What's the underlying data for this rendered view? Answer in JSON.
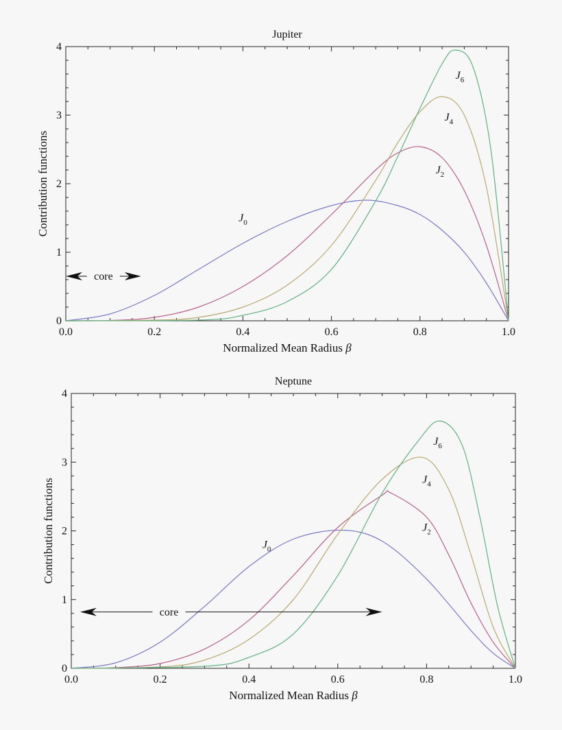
{
  "chart_data": [
    {
      "type": "line",
      "title": "Jupiter",
      "xlabel": "Normalized Mean Radius",
      "xlabel_symbol": "β",
      "ylabel": "Contribution functions",
      "xlim": [
        0,
        1
      ],
      "ylim": [
        0,
        4
      ],
      "x_ticks": [
        "0.0",
        "0.2",
        "0.4",
        "0.6",
        "0.8",
        "1.0"
      ],
      "y_ticks": [
        "0",
        "1",
        "2",
        "3",
        "4"
      ],
      "grid": false,
      "series": [
        {
          "name": "J",
          "sub": "0",
          "color": "#7878c4",
          "label_at": [
            0.4,
            1.45
          ],
          "x": [
            0.0,
            0.1,
            0.2,
            0.3,
            0.4,
            0.5,
            0.6,
            0.68,
            0.75,
            0.8,
            0.85,
            0.9,
            0.95,
            1.0
          ],
          "y": [
            0.0,
            0.1,
            0.37,
            0.75,
            1.13,
            1.45,
            1.68,
            1.76,
            1.68,
            1.55,
            1.32,
            1.0,
            0.55,
            0.0
          ]
        },
        {
          "name": "J",
          "sub": "2",
          "color": "#b8608a",
          "label_at": [
            0.845,
            2.15
          ],
          "x": [
            0.0,
            0.1,
            0.2,
            0.3,
            0.4,
            0.5,
            0.6,
            0.7,
            0.75,
            0.8,
            0.85,
            0.9,
            0.95,
            1.0
          ],
          "y": [
            0.0,
            0.005,
            0.05,
            0.2,
            0.5,
            0.95,
            1.55,
            2.2,
            2.45,
            2.54,
            2.38,
            1.9,
            1.1,
            0.0
          ]
        },
        {
          "name": "J",
          "sub": "4",
          "color": "#b8a870",
          "label_at": [
            0.865,
            2.92
          ],
          "x": [
            0.0,
            0.2,
            0.3,
            0.4,
            0.5,
            0.6,
            0.7,
            0.75,
            0.8,
            0.85,
            0.9,
            0.95,
            1.0
          ],
          "y": [
            0.0,
            0.01,
            0.05,
            0.2,
            0.52,
            1.1,
            2.05,
            2.6,
            3.05,
            3.27,
            3.0,
            1.95,
            0.0
          ]
        },
        {
          "name": "J",
          "sub": "6",
          "color": "#60b080",
          "label_at": [
            0.89,
            3.53
          ],
          "x": [
            0.0,
            0.3,
            0.4,
            0.5,
            0.6,
            0.7,
            0.75,
            0.8,
            0.85,
            0.88,
            0.92,
            0.96,
            1.0
          ],
          "y": [
            0.0,
            0.01,
            0.08,
            0.28,
            0.75,
            1.75,
            2.4,
            3.1,
            3.75,
            3.95,
            3.7,
            2.5,
            0.0
          ]
        }
      ],
      "annotation": {
        "text": "core",
        "from": 0.0,
        "to": 0.17,
        "y": 0.65,
        "text_x": 0.085
      }
    },
    {
      "type": "line",
      "title": "Neptune",
      "xlabel": "Normalized Mean Radius",
      "xlabel_symbol": "β",
      "ylabel": "Contribution functions",
      "xlim": [
        0,
        1
      ],
      "ylim": [
        0,
        4
      ],
      "x_ticks": [
        "0.0",
        "0.2",
        "0.4",
        "0.6",
        "0.8",
        "1.0"
      ],
      "y_ticks": [
        "0",
        "1",
        "2",
        "3",
        "4"
      ],
      "grid": false,
      "series": [
        {
          "name": "J",
          "sub": "0",
          "color": "#7878c4",
          "label_at": [
            0.44,
            1.75
          ],
          "x": [
            0.0,
            0.1,
            0.2,
            0.3,
            0.4,
            0.5,
            0.61,
            0.7,
            0.8,
            0.9,
            0.95,
            1.0
          ],
          "y": [
            0.0,
            0.08,
            0.38,
            0.9,
            1.48,
            1.88,
            2.01,
            1.85,
            1.3,
            0.55,
            0.22,
            0.0
          ]
        },
        {
          "name": "J",
          "sub": "2",
          "color": "#b8608a",
          "label_at": [
            0.8,
            2.0
          ],
          "x": [
            0.0,
            0.1,
            0.2,
            0.3,
            0.4,
            0.5,
            0.6,
            0.7,
            0.72,
            0.8,
            0.85,
            0.9,
            0.95,
            1.0
          ],
          "y": [
            0.0,
            0.01,
            0.07,
            0.28,
            0.7,
            1.35,
            2.05,
            2.52,
            2.55,
            2.2,
            1.65,
            0.95,
            0.38,
            0.0
          ]
        },
        {
          "name": "J",
          "sub": "4",
          "color": "#b8a870",
          "label_at": [
            0.8,
            2.7
          ],
          "x": [
            0.0,
            0.2,
            0.3,
            0.4,
            0.5,
            0.6,
            0.7,
            0.79,
            0.85,
            0.9,
            0.95,
            1.0
          ],
          "y": [
            0.0,
            0.02,
            0.12,
            0.42,
            1.0,
            1.95,
            2.75,
            3.07,
            2.6,
            1.65,
            0.6,
            0.0
          ]
        },
        {
          "name": "J",
          "sub": "6",
          "color": "#60b080",
          "label_at": [
            0.825,
            3.25
          ],
          "x": [
            0.0,
            0.3,
            0.4,
            0.5,
            0.6,
            0.7,
            0.78,
            0.83,
            0.88,
            0.92,
            0.96,
            1.0
          ],
          "y": [
            0.0,
            0.03,
            0.16,
            0.5,
            1.35,
            2.55,
            3.3,
            3.6,
            3.25,
            2.2,
            0.9,
            0.0
          ]
        }
      ],
      "annotation": {
        "text": "core",
        "from": 0.02,
        "to": 0.7,
        "y": 0.82,
        "text_x": 0.22
      }
    }
  ]
}
